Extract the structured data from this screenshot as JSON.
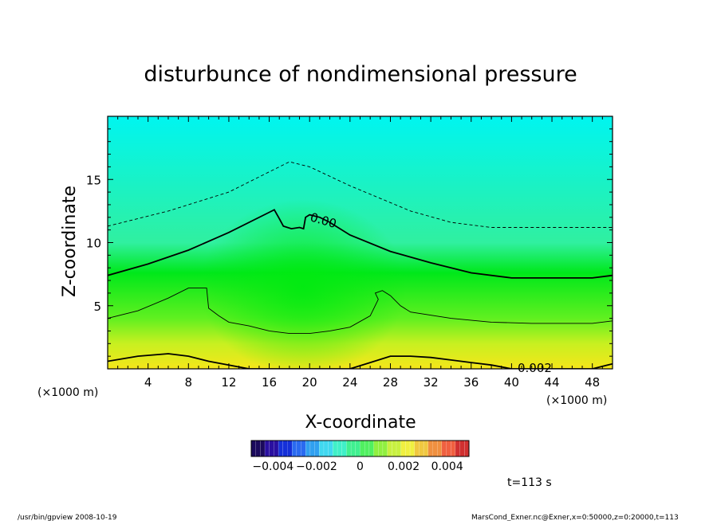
{
  "chart_data": {
    "type": "contour",
    "title": "disturbunce of nondimensional pressure",
    "xlabel": "X-coordinate",
    "ylabel": "Z-coordinate",
    "x_unit": "(×1000 m)",
    "z_unit": "(×1000 m)",
    "xlim": [
      0,
      50
    ],
    "ylim": [
      0,
      20
    ],
    "x_ticks": [
      4,
      8,
      12,
      16,
      20,
      24,
      28,
      32,
      36,
      40,
      44,
      48
    ],
    "y_ticks": [
      5,
      10,
      15
    ],
    "contour_label_zero": "0.00",
    "contour_label_pos": "0.002",
    "contours": [
      {
        "level": -0.001,
        "style": "dashed",
        "points": [
          [
            0,
            11.3
          ],
          [
            6,
            12.5
          ],
          [
            12,
            14
          ],
          [
            16,
            15.6
          ],
          [
            18,
            16.4
          ],
          [
            20,
            16
          ],
          [
            24,
            14.5
          ],
          [
            30,
            12.5
          ],
          [
            34,
            11.6
          ],
          [
            38,
            11.2
          ],
          [
            44,
            11.2
          ],
          [
            50,
            11.2
          ]
        ]
      },
      {
        "level": 0.0,
        "style": "thick",
        "points": [
          [
            0,
            7.4
          ],
          [
            4,
            8.3
          ],
          [
            8,
            9.4
          ],
          [
            12,
            10.8
          ],
          [
            16,
            12.4
          ],
          [
            16.5,
            12.6
          ],
          [
            17,
            11.9
          ],
          [
            17.4,
            11.3
          ],
          [
            18.2,
            11.1
          ],
          [
            19,
            11.2
          ],
          [
            19.4,
            11.1
          ],
          [
            19.6,
            12
          ],
          [
            20,
            12.2
          ],
          [
            21,
            12
          ],
          [
            22,
            11.6
          ],
          [
            24,
            10.6
          ],
          [
            28,
            9.3
          ],
          [
            32,
            8.4
          ],
          [
            36,
            7.6
          ],
          [
            40,
            7.2
          ],
          [
            46,
            7.2
          ],
          [
            48,
            7.2
          ],
          [
            50,
            7.4
          ]
        ]
      },
      {
        "level": 0.001,
        "style": "thin",
        "points": [
          [
            0,
            4.0
          ],
          [
            3,
            4.6
          ],
          [
            6,
            5.6
          ],
          [
            8,
            6.4
          ],
          [
            9.8,
            6.4
          ],
          [
            9.9,
            5.6
          ],
          [
            10,
            4.8
          ],
          [
            11,
            4.2
          ],
          [
            12,
            3.7
          ],
          [
            14,
            3.4
          ],
          [
            16,
            3.0
          ],
          [
            18,
            2.8
          ],
          [
            20,
            2.8
          ],
          [
            22,
            3.0
          ],
          [
            24,
            3.3
          ],
          [
            26,
            4.2
          ],
          [
            26.8,
            5.5
          ],
          [
            26.5,
            6
          ],
          [
            27.2,
            6.2
          ],
          [
            28,
            5.8
          ],
          [
            29,
            5.0
          ],
          [
            30,
            4.5
          ],
          [
            34,
            4.0
          ],
          [
            38,
            3.7
          ],
          [
            42,
            3.6
          ],
          [
            46,
            3.6
          ],
          [
            48,
            3.6
          ],
          [
            50,
            3.8
          ]
        ]
      },
      {
        "level": 0.002,
        "style": "thick",
        "points": [
          [
            0,
            0.6
          ],
          [
            3,
            1.0
          ],
          [
            6,
            1.2
          ],
          [
            8,
            1.0
          ],
          [
            10,
            0.6
          ],
          [
            12,
            0.3
          ],
          [
            14,
            0
          ],
          [
            24,
            0
          ],
          [
            26,
            0.5
          ],
          [
            28,
            1.0
          ],
          [
            30,
            1.0
          ],
          [
            32,
            0.9
          ],
          [
            34,
            0.7
          ],
          [
            36,
            0.5
          ],
          [
            38,
            0.3
          ],
          [
            40,
            0
          ],
          [
            48,
            0
          ],
          [
            50,
            0.4
          ]
        ]
      }
    ],
    "colorbar": {
      "vmin": -0.005,
      "vmax": 0.005,
      "tick_values": [
        -0.004,
        -0.002,
        0,
        0.002,
        0.004
      ],
      "tick_labels": [
        "−0.004",
        "−0.002",
        "0",
        "0.002",
        "0.004"
      ],
      "colors": [
        "#1b0a5c",
        "#2a10a0",
        "#1530d8",
        "#2a6af0",
        "#30a0f0",
        "#40d8f0",
        "#40f0c8",
        "#40f090",
        "#50f060",
        "#90f040",
        "#c8f040",
        "#f0f040",
        "#f0c840",
        "#f09040",
        "#f06040",
        "#d03030"
      ]
    },
    "field_colors": {
      "top": "#00f5f0",
      "middle": "#00e81a",
      "bottom": "#f5e61a"
    }
  },
  "time_label": "t=113 s",
  "footer": {
    "left": "/usr/bin/gpview  2008-10-19",
    "right": "MarsCond_Exner.nc@Exner,x=0:50000,z=0:20000,t=113"
  }
}
